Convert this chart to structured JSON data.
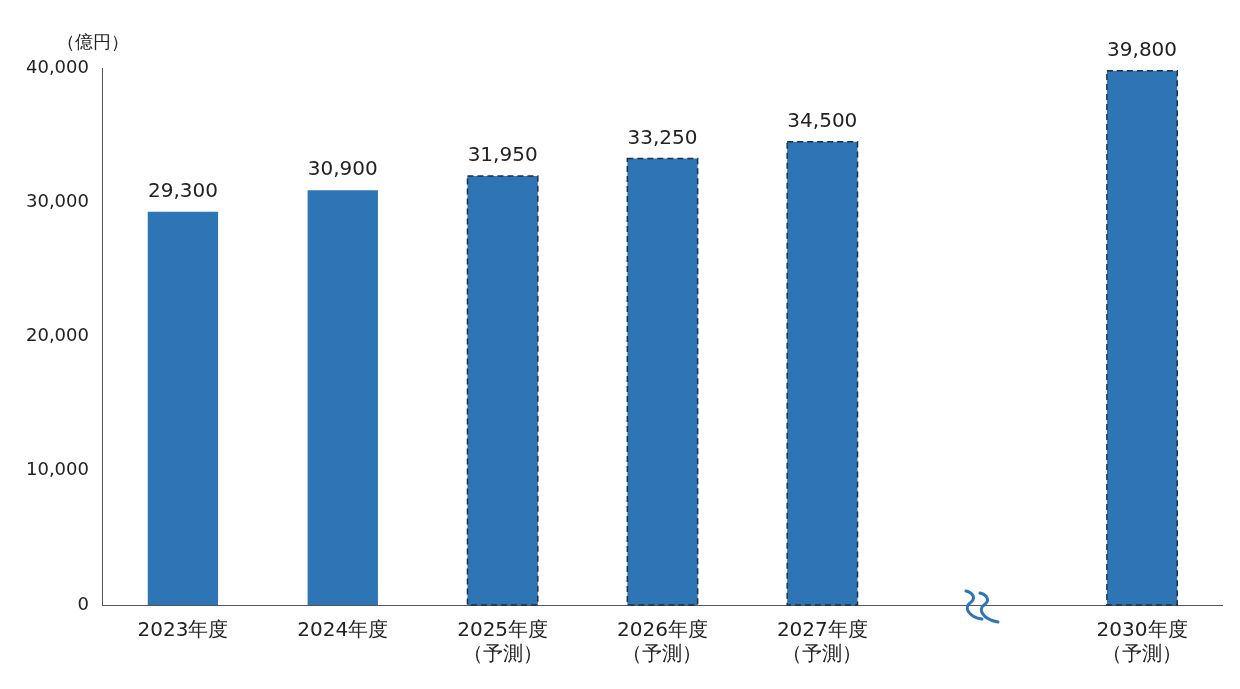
{
  "chart_data": {
    "type": "bar",
    "ylabel": "（億円）",
    "categories": [
      "2023年度",
      "2024年度",
      "2025年度（予測）",
      "2026年度（予測）",
      "2027年度（予測）",
      null,
      "2030年度（予測）"
    ],
    "series": [
      {
        "color": "#2e75b6",
        "line_style": "solid",
        "values": [
          29300,
          30900,
          null,
          null,
          null,
          null,
          null
        ],
        "value_labels": [
          "29,300",
          "30,900",
          null,
          null,
          null,
          null,
          null
        ]
      },
      {
        "color": "#2e75b6",
        "line_style": "dashed",
        "values": [
          null,
          null,
          31950,
          33250,
          34500,
          null,
          39800
        ],
        "value_labels": [
          null,
          null,
          "31,950",
          "33,250",
          "34,500",
          null,
          "39,800"
        ]
      }
    ],
    "ylim": [
      0,
      40000
    ],
    "yticks": [
      {
        "value": 0,
        "label": "0"
      },
      {
        "value": 10000,
        "label": "10,000"
      },
      {
        "value": 20000,
        "label": "20,000"
      },
      {
        "value": 30000,
        "label": "30,000"
      },
      {
        "value": 40000,
        "label": "40,000"
      }
    ],
    "grid": false,
    "legend": false
  }
}
